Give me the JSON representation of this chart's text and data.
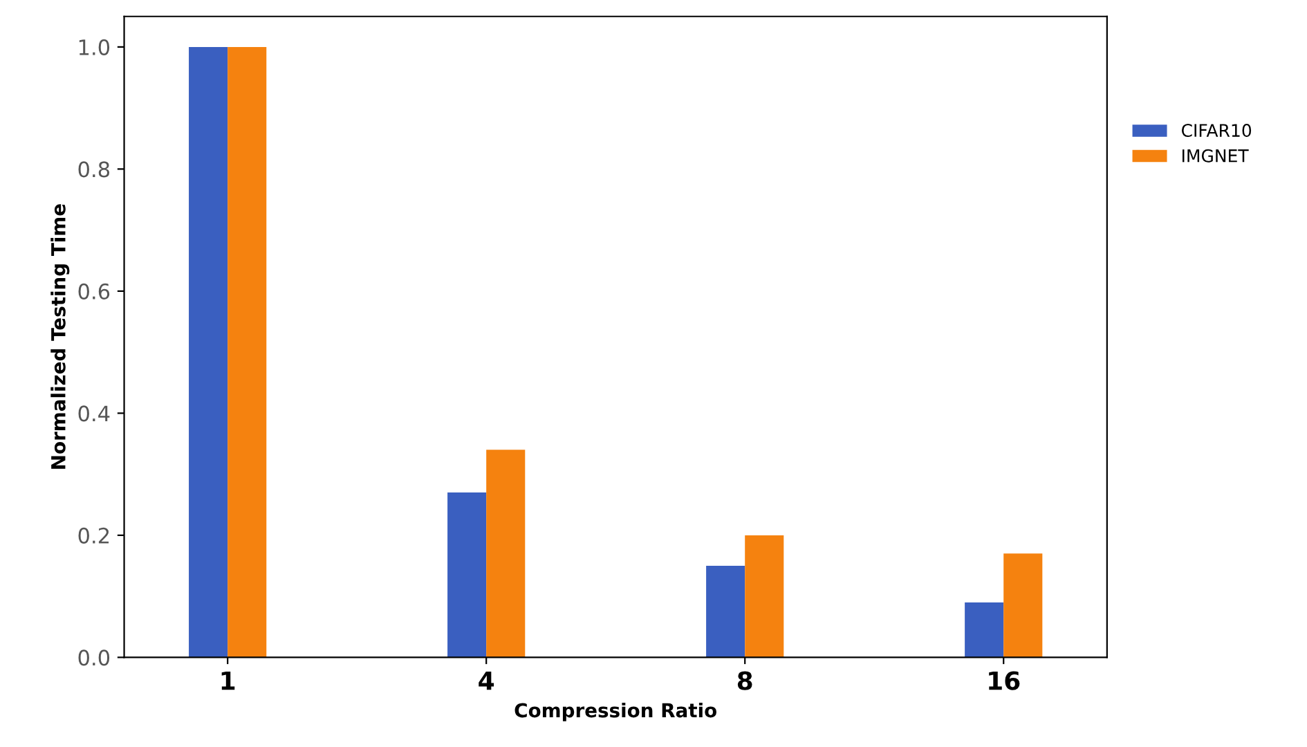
{
  "chart_data": {
    "type": "bar",
    "xlabel": "Compression Ratio",
    "ylabel": "Normalized Testing Time",
    "categories": [
      "1",
      "4",
      "8",
      "16"
    ],
    "series": [
      {
        "name": "CIFAR10",
        "color": "#3a5fc0",
        "values": [
          1.0,
          0.27,
          0.15,
          0.09
        ]
      },
      {
        "name": "IMGNET",
        "color": "#f5820f",
        "values": [
          1.0,
          0.34,
          0.2,
          0.17
        ]
      }
    ],
    "ylim": [
      0,
      1.05
    ],
    "yticks": [
      {
        "value": 0,
        "label": "0.0"
      },
      {
        "value": 0.2,
        "label": "0.2"
      },
      {
        "value": 0.4,
        "label": "0.4"
      },
      {
        "value": 0.6,
        "label": "0.6"
      },
      {
        "value": 0.8,
        "label": "0.8"
      },
      {
        "value": 1.0,
        "label": "1.0"
      }
    ],
    "grid": false,
    "legend": "right"
  }
}
